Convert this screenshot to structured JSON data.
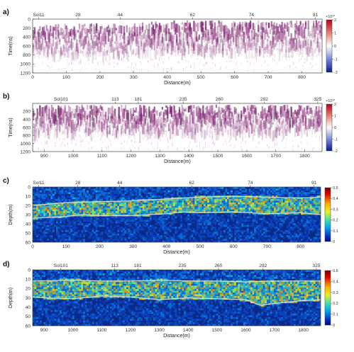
{
  "colors": {
    "radar_dark": "#7a1f6e",
    "radar_mid": "#b77aa8",
    "power_bg": "#0a2a8a",
    "power_hot": "#e8e020",
    "boundary": "#d9d9d9"
  },
  "panels": [
    {
      "type": "radargram",
      "letter": "a)",
      "ylabel": "Time(ns)",
      "xlabel": "Distance(m)",
      "xlim": [
        0,
        860
      ],
      "xticks": [
        "0",
        "100",
        "200",
        "300",
        "400",
        "500",
        "600",
        "700",
        "800"
      ],
      "xtick_values": [
        0,
        100,
        200,
        300,
        400,
        500,
        600,
        700,
        800
      ],
      "ylim": [
        0,
        1200
      ],
      "yticks": [
        "0",
        "200",
        "400",
        "600",
        "800",
        "1000",
        "1200"
      ],
      "ytick_values": [
        0,
        200,
        400,
        600,
        800,
        1000,
        1200
      ],
      "sol_labels": [
        {
          "text": "Sol11",
          "x": 18
        },
        {
          "text": "28",
          "x": 135
        },
        {
          "text": "44",
          "x": 260
        },
        {
          "text": "62",
          "x": 475
        },
        {
          "text": "74",
          "x": 650
        },
        {
          "text": "91",
          "x": 840
        }
      ],
      "colorbar": {
        "ticks": [
          "2",
          "1",
          "0",
          "-1",
          "-2"
        ],
        "values": [
          2,
          1,
          0,
          -1,
          -2
        ],
        "scale_label": "×10¹⁰"
      },
      "surface_profile": [
        [
          0,
          55
        ],
        [
          150,
          50
        ],
        [
          200,
          40
        ],
        [
          300,
          25
        ],
        [
          400,
          0
        ],
        [
          500,
          -10
        ],
        [
          600,
          -5
        ],
        [
          700,
          0
        ],
        [
          860,
          -5
        ]
      ]
    },
    {
      "type": "radargram",
      "letter": "b)",
      "ylabel": "Time(ns)",
      "xlabel": "Distance(m)",
      "xlim": [
        860,
        1860
      ],
      "xticks": [
        "900",
        "1000",
        "1100",
        "1200",
        "1300",
        "1400",
        "1500",
        "1600",
        "1700",
        "1800"
      ],
      "xtick_values": [
        900,
        1000,
        1100,
        1200,
        1300,
        1400,
        1500,
        1600,
        1700,
        1800
      ],
      "ylim": [
        0,
        1200
      ],
      "yticks": [
        "200",
        "400",
        "600",
        "800",
        "1000",
        "1200"
      ],
      "ytick_values": [
        200,
        400,
        600,
        800,
        1000,
        1200
      ],
      "sol_labels": [
        {
          "text": "Sol101",
          "x": 958
        },
        {
          "text": "113",
          "x": 1145
        },
        {
          "text": "181",
          "x": 1225
        },
        {
          "text": "235",
          "x": 1380
        },
        {
          "text": "260",
          "x": 1505
        },
        {
          "text": "292",
          "x": 1660
        },
        {
          "text": "325",
          "x": 1845
        }
      ],
      "colorbar": {
        "ticks": [
          "2",
          "1",
          "0",
          "-1",
          "-2"
        ],
        "values": [
          2,
          1,
          0,
          -1,
          -2
        ],
        "scale_label": "×10¹⁰"
      },
      "surface_profile": [
        [
          860,
          0
        ],
        [
          1860,
          0
        ]
      ]
    },
    {
      "type": "power",
      "letter": "c)",
      "ylabel": "Depth(m)",
      "xlabel": "Distance(m)",
      "xlim": [
        0,
        860
      ],
      "xticks": [
        "0",
        "100",
        "200",
        "300",
        "400",
        "500",
        "600",
        "700",
        "800"
      ],
      "xtick_values": [
        0,
        100,
        200,
        300,
        400,
        500,
        600,
        700,
        800
      ],
      "ylim": [
        0,
        60
      ],
      "yticks": [
        "0",
        "10",
        "20",
        "30",
        "40",
        "50",
        "60"
      ],
      "ytick_values": [
        0,
        10,
        20,
        30,
        40,
        50,
        60
      ],
      "sol_labels": [
        {
          "text": "Sol11",
          "x": 18
        },
        {
          "text": "28",
          "x": 135
        },
        {
          "text": "44",
          "x": 260
        },
        {
          "text": "62",
          "x": 475
        },
        {
          "text": "74",
          "x": 650
        },
        {
          "text": "91",
          "x": 840
        }
      ],
      "colorbar": {
        "ticks": [
          "0.5",
          "0.4",
          "0.3",
          "0.2",
          "0.1",
          "0"
        ],
        "values": [
          0.5,
          0.4,
          0.3,
          0.2,
          0.1,
          0
        ]
      },
      "upper_boundary": [
        [
          0,
          20
        ],
        [
          100,
          17
        ],
        [
          200,
          16
        ],
        [
          300,
          15
        ],
        [
          400,
          13
        ],
        [
          450,
          12
        ],
        [
          500,
          11
        ],
        [
          600,
          10
        ],
        [
          700,
          11
        ],
        [
          800,
          12
        ],
        [
          860,
          11
        ]
      ],
      "lower_boundary": [
        [
          0,
          34
        ],
        [
          100,
          32
        ],
        [
          150,
          30
        ],
        [
          200,
          31
        ],
        [
          300,
          31
        ],
        [
          400,
          29
        ],
        [
          450,
          27
        ],
        [
          500,
          28
        ],
        [
          600,
          27
        ],
        [
          700,
          29
        ],
        [
          800,
          28
        ],
        [
          860,
          30
        ]
      ]
    },
    {
      "type": "power",
      "letter": "d)",
      "ylabel": "Depth(m)",
      "xlabel": "Distance(m)",
      "xlim": [
        860,
        1860
      ],
      "xticks": [
        "900",
        "1000",
        "1100",
        "1200",
        "1300",
        "1400",
        "1500",
        "1600",
        "1700",
        "1800"
      ],
      "xtick_values": [
        900,
        1000,
        1100,
        1200,
        1300,
        1400,
        1500,
        1600,
        1700,
        1800
      ],
      "ylim": [
        0,
        60
      ],
      "yticks": [
        "0",
        "10",
        "20",
        "30",
        "40",
        "50",
        "60"
      ],
      "ytick_values": [
        0,
        10,
        20,
        30,
        40,
        50,
        60
      ],
      "sol_labels": [
        {
          "text": "Sol101",
          "x": 958
        },
        {
          "text": "113",
          "x": 1145
        },
        {
          "text": "181",
          "x": 1225
        },
        {
          "text": "235",
          "x": 1380
        },
        {
          "text": "260",
          "x": 1505
        },
        {
          "text": "292",
          "x": 1660
        },
        {
          "text": "325",
          "x": 1845
        }
      ],
      "colorbar": {
        "ticks": [
          "0.5",
          "0.4",
          "0.3",
          "0.2",
          "0.1",
          "0"
        ],
        "values": [
          0.5,
          0.4,
          0.3,
          0.2,
          0.1,
          0
        ]
      },
      "upper_boundary": [
        [
          860,
          12
        ],
        [
          1000,
          11
        ],
        [
          1100,
          12
        ],
        [
          1200,
          12
        ],
        [
          1300,
          11
        ],
        [
          1400,
          12
        ],
        [
          1500,
          12
        ],
        [
          1600,
          13
        ],
        [
          1700,
          12
        ],
        [
          1800,
          12
        ],
        [
          1860,
          12
        ]
      ],
      "lower_boundary": [
        [
          860,
          29
        ],
        [
          900,
          30
        ],
        [
          1000,
          31
        ],
        [
          1100,
          28
        ],
        [
          1200,
          29
        ],
        [
          1300,
          32
        ],
        [
          1400,
          30
        ],
        [
          1500,
          31
        ],
        [
          1600,
          32
        ],
        [
          1650,
          38
        ],
        [
          1700,
          36
        ],
        [
          1800,
          33
        ],
        [
          1860,
          32
        ]
      ]
    }
  ]
}
